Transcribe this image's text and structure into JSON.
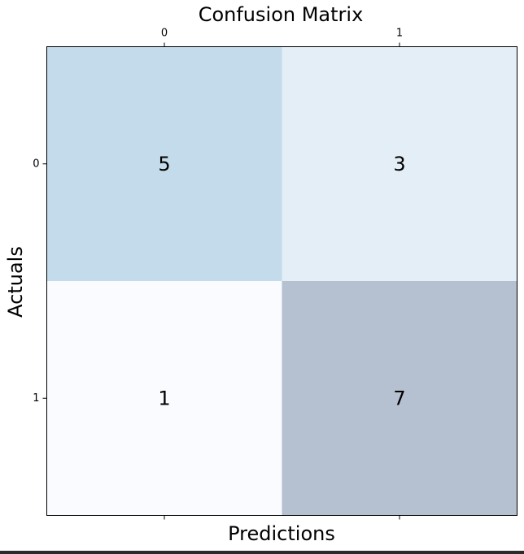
{
  "chart_data": {
    "type": "heatmap",
    "title": "Confusion Matrix",
    "xlabel": "Predictions",
    "ylabel": "Actuals",
    "x_ticks": [
      "0",
      "1"
    ],
    "y_ticks": [
      "0",
      "1"
    ],
    "x_tick_position": "top",
    "values": [
      [
        5,
        3
      ],
      [
        1,
        7
      ]
    ],
    "colormap": "Blues",
    "cell_colors": [
      [
        "#c3dbea",
        "#e3eef6"
      ],
      [
        "#f9fbfe",
        "#b5c1d1"
      ]
    ],
    "grid": false
  }
}
